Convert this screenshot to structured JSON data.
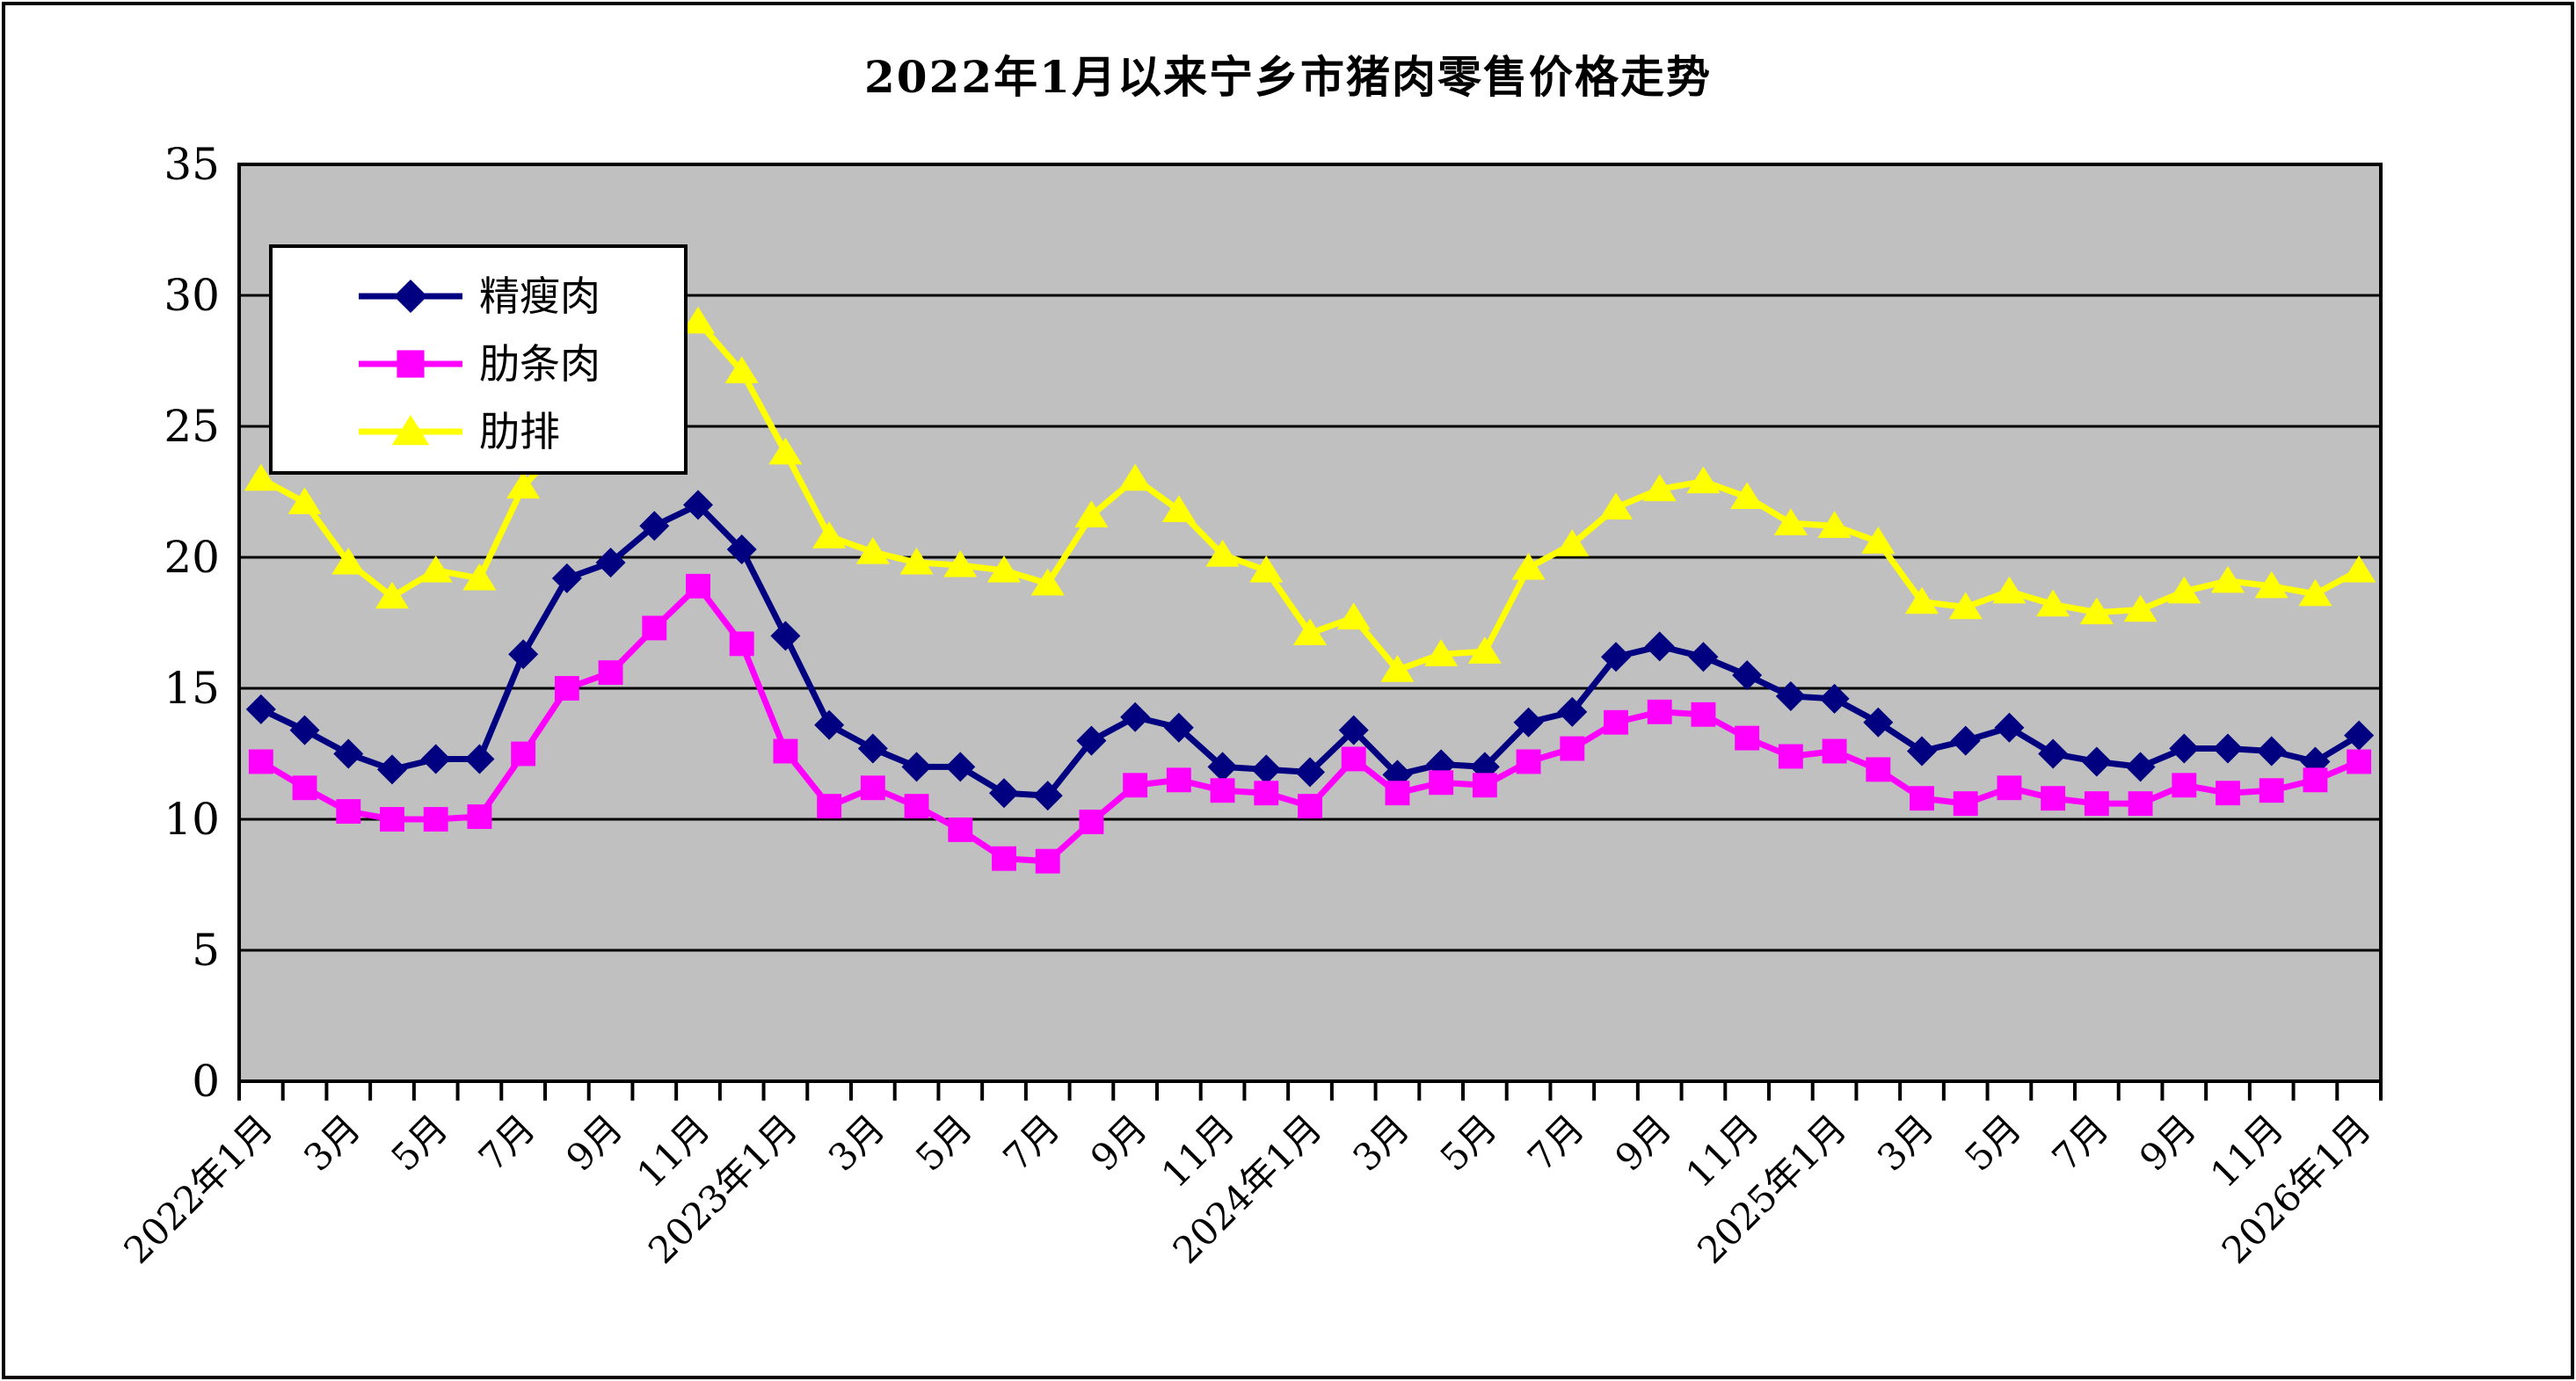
{
  "title": "2022年1月以来宁乡市猪肉零售价格走势",
  "chart_data": {
    "type": "line",
    "title": "2022年1月以来宁乡市猪肉零售价格走势",
    "xlabel": "",
    "ylabel": "",
    "ylim": [
      0,
      35
    ],
    "y_ticks": [
      0,
      5,
      10,
      15,
      20,
      25,
      30,
      35
    ],
    "grid": true,
    "plot_bg": "#C0C0C0",
    "legend_position": "upper-left-inside",
    "x_label_interval": 2,
    "x_tick_labels": [
      "2022年1月",
      "3月",
      "5月",
      "7月",
      "9月",
      "11月",
      "2023年1月",
      "3月",
      "5月",
      "7月",
      "9月",
      "11月",
      "2024年1月",
      "3月",
      "5月",
      "7月",
      "9月",
      "11月",
      "2025年1月",
      "3月",
      "5月",
      "7月",
      "9月",
      "11月",
      "2026年1月"
    ],
    "categories": [
      "2022-01",
      "2022-02",
      "2022-03",
      "2022-04",
      "2022-05",
      "2022-06",
      "2022-07",
      "2022-08",
      "2022-09",
      "2022-10",
      "2022-11",
      "2022-12",
      "2023-01",
      "2023-02",
      "2023-03",
      "2023-04",
      "2023-05",
      "2023-06",
      "2023-07",
      "2023-08",
      "2023-09",
      "2023-10",
      "2023-11",
      "2023-12",
      "2024-01",
      "2024-02",
      "2024-03",
      "2024-04",
      "2024-05",
      "2024-06",
      "2024-07",
      "2024-08",
      "2024-09",
      "2024-10",
      "2024-11",
      "2024-12",
      "2025-01",
      "2025-02",
      "2025-03",
      "2025-04",
      "2025-05",
      "2025-06",
      "2025-07",
      "2025-08",
      "2025-09",
      "2025-10",
      "2025-11",
      "2025-12",
      "2026-01"
    ],
    "series": [
      {
        "name": "精瘦肉",
        "color": "#000080",
        "marker": "diamond",
        "values": [
          14.2,
          13.4,
          12.5,
          11.9,
          12.3,
          12.3,
          16.3,
          19.2,
          19.8,
          21.2,
          22.0,
          20.3,
          17.0,
          13.6,
          12.7,
          12.0,
          12.0,
          11.0,
          10.9,
          13.0,
          13.9,
          13.5,
          12.0,
          11.9,
          11.8,
          13.4,
          11.7,
          12.1,
          12.0,
          13.7,
          14.1,
          16.2,
          16.6,
          16.2,
          15.5,
          14.7,
          14.6,
          13.7,
          12.6,
          13.0,
          13.5,
          12.5,
          12.2,
          12.0,
          12.7,
          12.7,
          12.6,
          12.2,
          13.2
        ]
      },
      {
        "name": "肋条肉",
        "color": "#FF00FF",
        "marker": "square",
        "values": [
          12.2,
          11.2,
          10.3,
          10.0,
          10.0,
          10.1,
          12.5,
          15.0,
          15.6,
          17.3,
          18.9,
          16.7,
          12.6,
          10.5,
          11.2,
          10.5,
          9.6,
          8.5,
          8.4,
          9.9,
          11.3,
          11.5,
          11.1,
          11.0,
          10.5,
          12.3,
          11.0,
          11.4,
          11.3,
          12.2,
          12.7,
          13.7,
          14.1,
          14.0,
          13.1,
          12.4,
          12.6,
          11.9,
          10.8,
          10.6,
          11.2,
          10.8,
          10.6,
          10.6,
          11.3,
          11.0,
          11.1,
          11.5,
          12.2
        ]
      },
      {
        "name": "肋排",
        "color": "#FFFF00",
        "marker": "triangle",
        "values": [
          23.0,
          22.1,
          19.8,
          18.5,
          19.5,
          19.2,
          22.7,
          24.5,
          26.5,
          28.2,
          29.0,
          27.1,
          24.0,
          20.8,
          20.2,
          19.8,
          19.7,
          19.5,
          19.0,
          21.6,
          23.0,
          21.8,
          20.1,
          19.5,
          17.1,
          17.7,
          15.7,
          16.3,
          16.4,
          19.6,
          20.5,
          21.9,
          22.6,
          22.9,
          22.3,
          21.3,
          21.2,
          20.6,
          18.3,
          18.1,
          18.7,
          18.2,
          17.9,
          18.0,
          18.7,
          19.1,
          18.9,
          18.6,
          19.5
        ]
      }
    ]
  }
}
